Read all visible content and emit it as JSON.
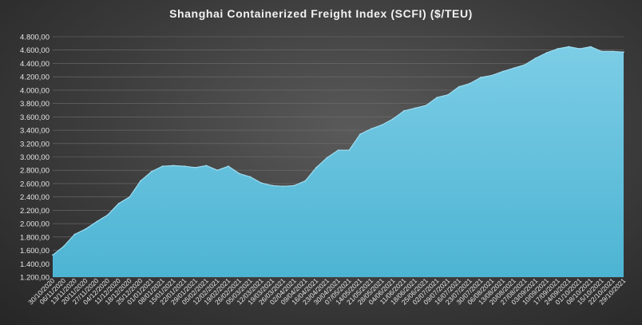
{
  "chart_data": {
    "type": "area",
    "title": "Shanghai Containerized Freight Index  (SCFI) ($/TEU)",
    "xlabel": "",
    "ylabel": "",
    "ylim": [
      1200,
      4800
    ],
    "y_ticks": [
      1200,
      1400,
      1600,
      1800,
      2000,
      2200,
      2400,
      2600,
      2800,
      3000,
      3200,
      3400,
      3600,
      3800,
      4000,
      4200,
      4400,
      4600,
      4800
    ],
    "y_tick_labels": [
      "1.200,00",
      "1.400,00",
      "1.600,00",
      "1.800,00",
      "2.000,00",
      "2.200,00",
      "2.400,00",
      "2.600,00",
      "2.800,00",
      "3.000,00",
      "3.200,00",
      "3.400,00",
      "3.600,00",
      "3.800,00",
      "4.000,00",
      "4.200,00",
      "4.400,00",
      "4.600,00",
      "4.800,00"
    ],
    "x": [
      "30/10/2020",
      "06/11/2020",
      "13/11/2020",
      "20/11/2020",
      "27/11/2020",
      "04/12/2020",
      "11/12/2020",
      "18/12/2020",
      "25/12/2020",
      "01/01/2021",
      "08/01/2021",
      "15/01/2021",
      "22/01/2021",
      "29/01/2021",
      "05/02/2021",
      "12/02/2021",
      "19/02/2021",
      "26/02/2021",
      "05/03/2021",
      "12/03/2021",
      "19/03/2021",
      "26/03/2021",
      "02/04/2021",
      "09/04/2021",
      "16/04/2021",
      "23/04/2021",
      "30/04/2021",
      "07/05/2021",
      "14/05/2021",
      "21/05/2021",
      "28/05/2021",
      "04/06/2021",
      "11/06/2021",
      "18/06/2021",
      "25/06/2021",
      "02/07/2021",
      "09/07/2021",
      "16/07/2021",
      "23/07/2021",
      "30/07/2021",
      "06/08/2021",
      "13/08/2021",
      "20/08/2021",
      "27/08/2021",
      "03/09/2021",
      "10/09/2021",
      "17/09/2021",
      "24/09/2021",
      "01/10/2021",
      "08/10/2021",
      "15/10/2021",
      "22/10/2021",
      "29/10/2021"
    ],
    "series": [
      {
        "values": [
          1530,
          1660,
          1840,
          1920,
          2030,
          2130,
          2300,
          2400,
          2640,
          2780,
          2860,
          2870,
          2860,
          2840,
          2870,
          2800,
          2860,
          2750,
          2700,
          2610,
          2570,
          2560,
          2570,
          2640,
          2840,
          2990,
          3100,
          3100,
          3340,
          3420,
          3480,
          3570,
          3690,
          3730,
          3770,
          3890,
          3930,
          4050,
          4100,
          4190,
          4220,
          4280,
          4330,
          4380,
          4480,
          4560,
          4620,
          4650,
          4620,
          4650,
          4580,
          4580,
          4570
        ],
        "color": "#4eb6d4"
      }
    ],
    "grid": true,
    "legend": "none",
    "colors": {
      "area_fill": "#4eb6d4",
      "area_top": "#9fdcef",
      "background": "#3b3b3b",
      "text": "#e6e6e6"
    }
  }
}
